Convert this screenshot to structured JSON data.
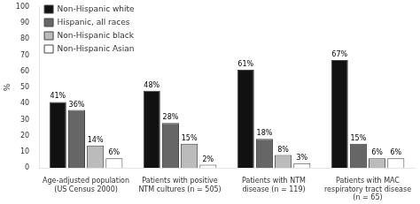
{
  "chart_data": {
    "type": "bar",
    "categories": [
      "Age-adjusted population\n(US Census 2000)",
      "Patients with positive\nNTM cultures (n = 505)",
      "Patients with NTM\ndisease (n = 119)",
      "Patients with MAC\nrespiratory tract disease\n(n = 65)"
    ],
    "series": [
      {
        "name": "Non-Hispanic white",
        "color": "#111111",
        "values": [
          41,
          48,
          61,
          67
        ],
        "value_labels": [
          "41%",
          "48%",
          "61%",
          "67%"
        ]
      },
      {
        "name": "Hispanic, all races",
        "color": "#666666",
        "values": [
          36,
          28,
          18,
          15
        ],
        "value_labels": [
          "36%",
          "28%",
          "18%",
          "15%"
        ]
      },
      {
        "name": "Non-Hispanic black",
        "color": "#bbbbbb",
        "values": [
          14,
          15,
          8,
          6
        ],
        "value_labels": [
          "14%",
          "15%",
          "8%",
          "6%"
        ]
      },
      {
        "name": "Non-Hispanic Asian",
        "color": "#ffffff",
        "values": [
          6,
          2,
          3,
          6
        ],
        "value_labels": [
          "6%",
          "2%",
          "3%",
          "6%"
        ]
      }
    ],
    "ylabel": "%",
    "ylim": [
      0,
      100
    ],
    "yticks": [
      0,
      10,
      20,
      30,
      40,
      50,
      60,
      70,
      80,
      90,
      100
    ],
    "grid": false,
    "legend": "upper left",
    "data_labels": true
  }
}
